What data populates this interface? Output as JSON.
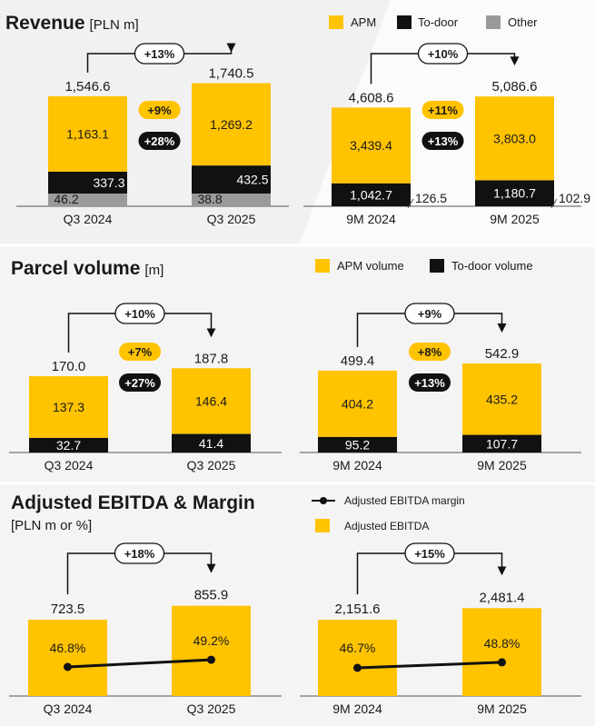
{
  "colors": {
    "yellow": "#FFC300",
    "black": "#111111",
    "grey": "#9a9a9a",
    "text": "#1a1a1a",
    "axis": "#555555"
  },
  "revenue": {
    "title": "Revenue",
    "unit": "[PLN m]",
    "legend": [
      {
        "label": "APM",
        "color": "#FFC300"
      },
      {
        "label": "To-door",
        "color": "#111111"
      },
      {
        "label": "Other",
        "color": "#9a9a9a"
      }
    ]
  },
  "parcels": {
    "title": "Parcel volume",
    "unit": "[m]",
    "legend": [
      {
        "label": "APM volume",
        "color": "#FFC300"
      },
      {
        "label": "To-door volume",
        "color": "#111111"
      }
    ]
  },
  "ebitda": {
    "title": "Adjusted EBITDA & Margin",
    "unit": "[PLN m or %]",
    "legend": [
      {
        "label": "Adjusted EBITDA margin",
        "kind": "line"
      },
      {
        "label": "Adjusted EBITDA",
        "kind": "box"
      }
    ]
  },
  "chart_data": [
    {
      "id": "rev_q3",
      "type": "bar",
      "stacked": true,
      "title": "Revenue [PLN m] — Q3",
      "categories": [
        "Q3 2024",
        "Q3 2025"
      ],
      "series": [
        {
          "name": "Other",
          "values": [
            46.2,
            38.8
          ]
        },
        {
          "name": "To-door",
          "values": [
            337.3,
            432.5
          ]
        },
        {
          "name": "APM",
          "values": [
            1163.1,
            1269.2
          ]
        }
      ],
      "totals": [
        "1,546.6",
        "1,740.5"
      ],
      "labels": {
        "Other": [
          "46.2",
          "38.8"
        ],
        "To-door": [
          "337.3",
          "432.5"
        ],
        "APM": [
          "1,163.1",
          "1,269.2"
        ]
      },
      "growth_total": "+13%",
      "growth_apm": "+9%",
      "growth_todoor": "+28%",
      "ylim": [
        0,
        1800
      ]
    },
    {
      "id": "rev_9m",
      "type": "bar",
      "stacked": true,
      "title": "Revenue [PLN m] — 9M",
      "categories": [
        "9M 2024",
        "9M 2025"
      ],
      "series": [
        {
          "name": "To-door",
          "values": [
            1042.7,
            1180.7
          ]
        },
        {
          "name": "APM",
          "values": [
            3439.4,
            3803.0
          ]
        },
        {
          "name": "Other",
          "values": [
            126.5,
            102.9
          ]
        }
      ],
      "totals": [
        "4,608.6",
        "5,086.6"
      ],
      "labels": {
        "To-door": [
          "1,042.7",
          "1,180.7"
        ],
        "APM": [
          "3,439.4",
          "3,803.0"
        ],
        "Other": [
          "126.5",
          "102.9"
        ]
      },
      "growth_total": "+10%",
      "growth_apm": "+11%",
      "growth_todoor": "+13%",
      "ylim": [
        0,
        5200
      ]
    },
    {
      "id": "vol_q3",
      "type": "bar",
      "stacked": true,
      "title": "Parcel volume [m] — Q3",
      "categories": [
        "Q3 2024",
        "Q3 2025"
      ],
      "series": [
        {
          "name": "To-door volume",
          "values": [
            32.7,
            41.4
          ]
        },
        {
          "name": "APM volume",
          "values": [
            137.3,
            146.4
          ]
        }
      ],
      "totals": [
        "170.0",
        "187.8"
      ],
      "labels": {
        "To-door volume": [
          "32.7",
          "41.4"
        ],
        "APM volume": [
          "137.3",
          "146.4"
        ]
      },
      "growth_total": "+10%",
      "growth_apm": "+7%",
      "growth_todoor": "+27%",
      "ylim": [
        0,
        190
      ]
    },
    {
      "id": "vol_9m",
      "type": "bar",
      "stacked": true,
      "title": "Parcel volume [m] — 9M",
      "categories": [
        "9M 2024",
        "9M 2025"
      ],
      "series": [
        {
          "name": "To-door volume",
          "values": [
            95.2,
            107.7
          ]
        },
        {
          "name": "APM volume",
          "values": [
            404.2,
            435.2
          ]
        }
      ],
      "totals": [
        "499.4",
        "542.9"
      ],
      "labels": {
        "To-door volume": [
          "95.2",
          "107.7"
        ],
        "APM volume": [
          "404.2",
          "435.2"
        ]
      },
      "growth_total": "+9%",
      "growth_apm": "+8%",
      "growth_todoor": "+13%",
      "ylim": [
        0,
        550
      ]
    },
    {
      "id": "ebitda_q3",
      "type": "bar",
      "title": "Adjusted EBITDA & Margin — Q3",
      "categories": [
        "Q3 2024",
        "Q3 2025"
      ],
      "values": [
        723.5,
        855.9
      ],
      "value_labels": [
        "723.5",
        "855.9"
      ],
      "margin": [
        46.8,
        49.2
      ],
      "margin_labels": [
        "46.8%",
        "49.2%"
      ],
      "growth_total": "+18%",
      "ylim": [
        0,
        860
      ]
    },
    {
      "id": "ebitda_9m",
      "type": "bar",
      "title": "Adjusted EBITDA & Margin — 9M",
      "categories": [
        "9M 2024",
        "9M 2025"
      ],
      "values": [
        2151.6,
        2481.4
      ],
      "value_labels": [
        "2,151.6",
        "2,481.4"
      ],
      "margin": [
        46.7,
        48.8
      ],
      "margin_labels": [
        "46.7%",
        "48.8%"
      ],
      "growth_total": "+15%",
      "ylim": [
        0,
        2490
      ]
    }
  ]
}
